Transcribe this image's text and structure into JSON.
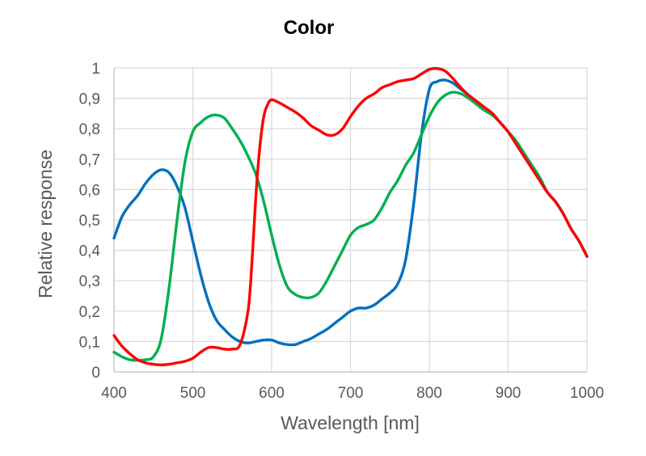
{
  "chart_data": {
    "type": "line",
    "title": "Color",
    "xlabel": "Wavelength [nm]",
    "ylabel": "Relative response",
    "xlim": [
      400,
      1000
    ],
    "ylim": [
      0,
      1
    ],
    "x_ticks": [
      400,
      500,
      600,
      700,
      800,
      900,
      1000
    ],
    "x_tick_labels": [
      "400",
      "500",
      "600",
      "700",
      "800",
      "900",
      "1000"
    ],
    "y_ticks": [
      0,
      0.1,
      0.2,
      0.3,
      0.4,
      0.5,
      0.6,
      0.7,
      0.8,
      0.9,
      1
    ],
    "y_tick_labels": [
      "0",
      "0,1",
      "0,2",
      "0,3",
      "0,4",
      "0,5",
      "0,6",
      "0,7",
      "0,8",
      "0,9",
      "1"
    ],
    "grid": true,
    "series": [
      {
        "name": "Blue",
        "color": "#0070c0",
        "x": [
          400,
          410,
          420,
          430,
          440,
          450,
          460,
          470,
          480,
          490,
          500,
          510,
          520,
          530,
          540,
          550,
          560,
          570,
          580,
          590,
          600,
          610,
          620,
          630,
          640,
          650,
          660,
          670,
          680,
          690,
          700,
          710,
          720,
          730,
          740,
          750,
          760,
          770,
          780,
          790,
          800,
          810,
          820,
          830,
          840,
          850,
          860,
          870,
          880,
          890,
          900,
          910,
          920,
          930,
          940,
          950,
          960,
          970,
          980,
          990,
          1000
        ],
        "y": [
          0.44,
          0.51,
          0.55,
          0.58,
          0.62,
          0.65,
          0.665,
          0.655,
          0.61,
          0.54,
          0.43,
          0.32,
          0.23,
          0.17,
          0.14,
          0.115,
          0.1,
          0.095,
          0.1,
          0.105,
          0.105,
          0.095,
          0.09,
          0.09,
          0.1,
          0.11,
          0.125,
          0.14,
          0.16,
          0.18,
          0.2,
          0.21,
          0.21,
          0.22,
          0.24,
          0.26,
          0.29,
          0.37,
          0.55,
          0.78,
          0.93,
          0.955,
          0.96,
          0.95,
          0.93,
          0.91,
          0.89,
          0.87,
          0.85,
          0.82,
          0.79,
          0.75,
          0.71,
          0.67,
          0.63,
          0.59,
          0.56,
          0.52,
          0.47,
          0.43,
          0.38
        ]
      },
      {
        "name": "Green",
        "color": "#00b050",
        "x": [
          400,
          410,
          420,
          430,
          440,
          450,
          460,
          470,
          480,
          490,
          500,
          510,
          520,
          530,
          540,
          550,
          560,
          570,
          580,
          590,
          600,
          610,
          620,
          630,
          640,
          650,
          660,
          670,
          680,
          690,
          700,
          710,
          720,
          730,
          740,
          750,
          760,
          770,
          780,
          790,
          800,
          810,
          820,
          830,
          840,
          850,
          860,
          870,
          880,
          890,
          900,
          910,
          920,
          930,
          940,
          950,
          960,
          970,
          980,
          990,
          1000
        ],
        "y": [
          0.065,
          0.05,
          0.04,
          0.038,
          0.04,
          0.05,
          0.11,
          0.28,
          0.5,
          0.69,
          0.79,
          0.82,
          0.84,
          0.845,
          0.835,
          0.8,
          0.76,
          0.71,
          0.65,
          0.56,
          0.45,
          0.35,
          0.28,
          0.255,
          0.245,
          0.245,
          0.26,
          0.3,
          0.35,
          0.4,
          0.45,
          0.475,
          0.485,
          0.5,
          0.54,
          0.59,
          0.63,
          0.68,
          0.72,
          0.78,
          0.84,
          0.885,
          0.91,
          0.92,
          0.915,
          0.9,
          0.88,
          0.86,
          0.845,
          0.82,
          0.79,
          0.76,
          0.72,
          0.68,
          0.64,
          0.59,
          0.56,
          0.52,
          0.47,
          0.43,
          0.38
        ]
      },
      {
        "name": "Red",
        "color": "#ff0000",
        "x": [
          400,
          410,
          420,
          430,
          440,
          450,
          460,
          470,
          480,
          490,
          500,
          510,
          520,
          530,
          540,
          550,
          560,
          570,
          575,
          580,
          585,
          590,
          595,
          600,
          610,
          620,
          630,
          640,
          650,
          660,
          670,
          680,
          690,
          700,
          710,
          720,
          730,
          740,
          750,
          760,
          770,
          780,
          790,
          800,
          810,
          820,
          830,
          840,
          850,
          860,
          870,
          880,
          890,
          900,
          910,
          920,
          930,
          940,
          950,
          960,
          970,
          980,
          990,
          1000
        ],
        "y": [
          0.12,
          0.085,
          0.06,
          0.04,
          0.03,
          0.025,
          0.023,
          0.025,
          0.03,
          0.035,
          0.045,
          0.065,
          0.08,
          0.08,
          0.075,
          0.075,
          0.09,
          0.2,
          0.36,
          0.58,
          0.74,
          0.84,
          0.88,
          0.895,
          0.885,
          0.87,
          0.855,
          0.835,
          0.81,
          0.795,
          0.78,
          0.78,
          0.8,
          0.84,
          0.875,
          0.9,
          0.915,
          0.935,
          0.945,
          0.955,
          0.96,
          0.965,
          0.98,
          0.995,
          0.998,
          0.99,
          0.965,
          0.935,
          0.91,
          0.89,
          0.87,
          0.85,
          0.82,
          0.79,
          0.75,
          0.71,
          0.67,
          0.63,
          0.59,
          0.56,
          0.52,
          0.47,
          0.43,
          0.38
        ]
      }
    ]
  }
}
